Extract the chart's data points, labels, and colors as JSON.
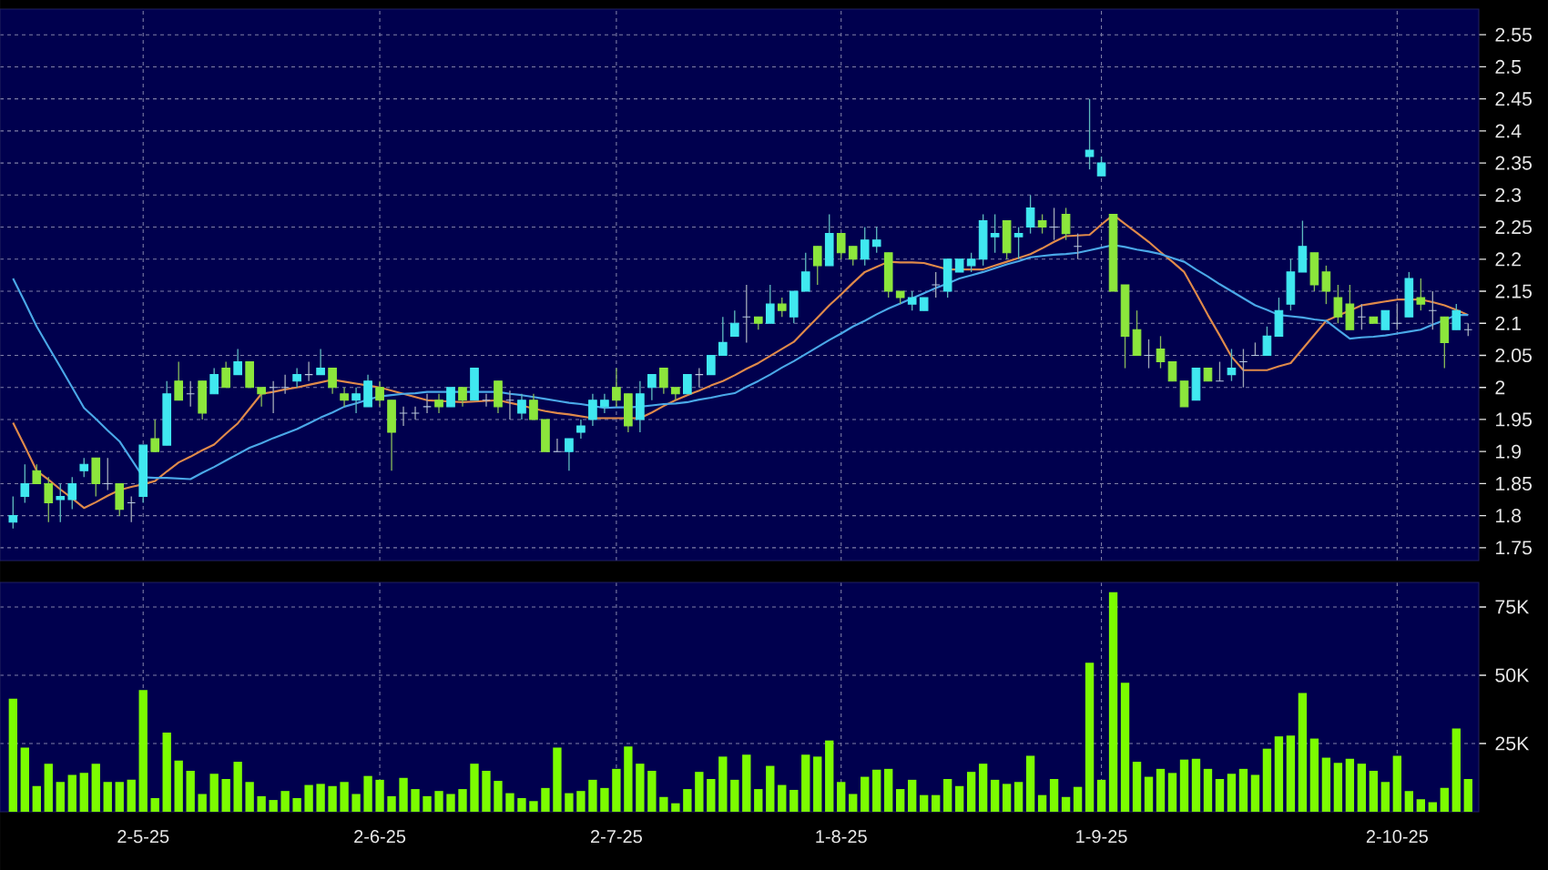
{
  "chart_data": [
    {
      "type": "candlestick",
      "tick_labels": "y",
      "grid": true,
      "ylim": [
        1.73,
        2.59
      ],
      "categories": [
        null,
        null,
        null,
        null,
        null,
        null,
        null,
        null,
        null,
        null,
        null,
        null,
        null,
        null,
        null,
        null,
        null,
        null,
        null,
        null,
        null,
        null,
        null,
        null,
        null,
        null,
        null,
        null,
        null,
        null,
        null,
        null,
        null,
        null,
        null,
        null,
        null,
        null,
        null,
        null,
        null,
        null,
        null,
        null,
        null,
        null,
        null,
        null,
        null,
        null,
        null,
        null,
        null,
        null,
        null,
        null,
        null,
        null,
        null,
        null,
        null,
        null,
        null,
        null,
        null,
        null,
        null,
        null,
        null,
        null,
        null,
        null,
        null,
        null,
        null,
        null,
        null,
        null,
        null,
        null,
        null,
        null,
        null,
        null,
        null,
        null,
        null,
        null,
        null,
        null,
        null,
        null,
        null,
        null,
        null,
        null,
        null,
        null,
        null,
        null,
        null,
        null,
        null,
        null,
        null,
        null,
        null,
        null,
        null,
        null,
        null,
        null,
        null,
        null,
        null,
        null,
        null,
        null,
        null,
        null,
        null,
        null,
        null,
        null
      ],
      "yticks": [
        1.75,
        1.8,
        1.85,
        1.9,
        1.95,
        2,
        2.05,
        2.1,
        2.15,
        2.2,
        2.25,
        2.3,
        2.35,
        2.4,
        2.45,
        2.5,
        2.55
      ],
      "ohlc": [
        [
          1.79,
          1.83,
          1.78,
          1.8
        ],
        [
          1.83,
          1.88,
          1.82,
          1.85
        ],
        [
          1.87,
          1.88,
          1.85,
          1.85
        ],
        [
          1.85,
          1.86,
          1.79,
          1.82
        ],
        [
          1.825,
          1.85,
          1.79,
          1.83
        ],
        [
          1.825,
          1.86,
          1.81,
          1.85
        ],
        [
          1.87,
          1.89,
          1.86,
          1.88
        ],
        [
          1.89,
          1.89,
          1.83,
          1.85
        ],
        [
          1.85,
          1.89,
          1.84,
          1.85
        ],
        [
          1.85,
          1.85,
          1.8,
          1.81
        ],
        [
          1.82,
          1.83,
          1.79,
          1.82
        ],
        [
          1.83,
          1.91,
          1.82,
          1.91
        ],
        [
          1.92,
          1.95,
          1.9,
          1.9
        ],
        [
          1.91,
          2.01,
          1.91,
          1.99
        ],
        [
          2.01,
          2.04,
          1.98,
          1.98
        ],
        [
          1.99,
          2.01,
          1.97,
          1.99
        ],
        [
          2.01,
          2.01,
          1.95,
          1.96
        ],
        [
          1.99,
          2.03,
          1.99,
          2.02
        ],
        [
          2.03,
          2.04,
          2.0,
          2.0
        ],
        [
          2.02,
          2.06,
          2.02,
          2.04
        ],
        [
          2.04,
          2.04,
          2.0,
          2.0
        ],
        [
          2.0,
          2.0,
          1.97,
          1.99
        ],
        [
          2.0,
          2.01,
          1.96,
          2.0
        ],
        [
          2.0,
          2.02,
          1.99,
          2.0
        ],
        [
          2.01,
          2.03,
          2.0,
          2.02
        ],
        [
          2.02,
          2.04,
          2.01,
          2.02
        ],
        [
          2.02,
          2.06,
          2.02,
          2.03
        ],
        [
          2.03,
          2.03,
          1.99,
          2.0
        ],
        [
          1.99,
          2.0,
          1.97,
          1.98
        ],
        [
          1.98,
          2.0,
          1.96,
          1.99
        ],
        [
          1.97,
          2.02,
          1.97,
          2.01
        ],
        [
          2.0,
          2.01,
          1.97,
          1.98
        ],
        [
          1.98,
          1.98,
          1.87,
          1.93
        ],
        [
          1.96,
          1.97,
          1.94,
          1.96
        ],
        [
          1.96,
          1.97,
          1.95,
          1.96
        ],
        [
          1.97,
          1.99,
          1.96,
          1.97
        ],
        [
          1.98,
          1.99,
          1.96,
          1.97
        ],
        [
          1.97,
          2.0,
          1.97,
          2.0
        ],
        [
          2.0,
          2.0,
          1.97,
          1.98
        ],
        [
          1.98,
          2.03,
          1.98,
          2.03
        ],
        [
          1.98,
          1.99,
          1.97,
          1.98
        ],
        [
          2.01,
          2.01,
          1.96,
          1.97
        ],
        [
          1.98,
          1.995,
          1.95,
          1.98
        ],
        [
          1.96,
          1.99,
          1.95,
          1.98
        ],
        [
          1.98,
          1.99,
          1.95,
          1.95
        ],
        [
          1.95,
          1.95,
          1.9,
          1.9
        ],
        [
          1.9,
          1.92,
          1.9,
          1.9
        ],
        [
          1.9,
          1.92,
          1.87,
          1.92
        ],
        [
          1.93,
          1.95,
          1.92,
          1.94
        ],
        [
          1.95,
          1.99,
          1.94,
          1.98
        ],
        [
          1.97,
          1.99,
          1.96,
          1.98
        ],
        [
          2.0,
          2.03,
          1.97,
          1.98
        ],
        [
          1.99,
          1.99,
          1.93,
          1.94
        ],
        [
          1.95,
          2.01,
          1.93,
          1.99
        ],
        [
          2.0,
          2.02,
          1.98,
          2.02
        ],
        [
          2.03,
          2.03,
          1.99,
          2.0
        ],
        [
          2.0,
          2.0,
          1.98,
          1.99
        ],
        [
          1.99,
          2.02,
          1.99,
          2.02
        ],
        [
          2.02,
          2.03,
          2.0,
          2.02
        ],
        [
          2.02,
          2.05,
          2.02,
          2.05
        ],
        [
          2.05,
          2.11,
          2.05,
          2.07
        ],
        [
          2.08,
          2.12,
          2.08,
          2.1
        ],
        [
          2.11,
          2.16,
          2.07,
          2.11
        ],
        [
          2.11,
          2.11,
          2.09,
          2.1
        ],
        [
          2.1,
          2.16,
          2.1,
          2.13
        ],
        [
          2.13,
          2.14,
          2.11,
          2.12
        ],
        [
          2.11,
          2.15,
          2.1,
          2.15
        ],
        [
          2.15,
          2.21,
          2.15,
          2.18
        ],
        [
          2.22,
          2.22,
          2.16,
          2.19
        ],
        [
          2.19,
          2.27,
          2.19,
          2.24
        ],
        [
          2.24,
          2.24,
          2.2,
          2.21
        ],
        [
          2.22,
          2.22,
          2.19,
          2.2
        ],
        [
          2.2,
          2.25,
          2.19,
          2.23
        ],
        [
          2.22,
          2.25,
          2.21,
          2.23
        ],
        [
          2.21,
          2.21,
          2.14,
          2.15
        ],
        [
          2.15,
          2.15,
          2.13,
          2.14
        ],
        [
          2.13,
          2.15,
          2.12,
          2.14
        ],
        [
          2.12,
          2.14,
          2.12,
          2.14
        ],
        [
          2.16,
          2.18,
          2.14,
          2.16
        ],
        [
          2.15,
          2.2,
          2.14,
          2.2
        ],
        [
          2.18,
          2.2,
          2.18,
          2.2
        ],
        [
          2.19,
          2.21,
          2.18,
          2.2
        ],
        [
          2.2,
          2.27,
          2.19,
          2.26
        ],
        [
          2.235,
          2.27,
          2.21,
          2.24
        ],
        [
          2.26,
          2.26,
          2.2,
          2.21
        ],
        [
          2.235,
          2.25,
          2.2,
          2.24
        ],
        [
          2.25,
          2.3,
          2.24,
          2.28
        ],
        [
          2.26,
          2.27,
          2.24,
          2.25
        ],
        [
          2.25,
          2.28,
          2.23,
          2.25
        ],
        [
          2.27,
          2.28,
          2.23,
          2.24
        ],
        [
          2.22,
          2.24,
          2.2,
          2.22
        ],
        [
          2.36,
          2.45,
          2.34,
          2.37
        ],
        [
          2.33,
          2.36,
          2.33,
          2.35
        ],
        [
          2.27,
          2.27,
          2.15,
          2.15
        ],
        [
          2.16,
          2.16,
          2.03,
          2.08
        ],
        [
          2.09,
          2.12,
          2.05,
          2.05
        ],
        [
          2.05,
          2.075,
          2.03,
          2.05
        ],
        [
          2.06,
          2.08,
          2.03,
          2.04
        ],
        [
          2.04,
          2.04,
          2.01,
          2.01
        ],
        [
          2.01,
          2.01,
          1.97,
          1.97
        ],
        [
          1.98,
          2.03,
          1.98,
          2.03
        ],
        [
          2.03,
          2.03,
          2.01,
          2.01
        ],
        [
          2.01,
          2.04,
          2.01,
          2.01
        ],
        [
          2.02,
          2.06,
          2.01,
          2.03
        ],
        [
          2.04,
          2.06,
          2.0,
          2.04
        ],
        [
          2.05,
          2.07,
          2.05,
          2.05
        ],
        [
          2.05,
          2.095,
          2.05,
          2.08
        ],
        [
          2.08,
          2.14,
          2.08,
          2.12
        ],
        [
          2.13,
          2.2,
          2.12,
          2.18
        ],
        [
          2.18,
          2.26,
          2.18,
          2.22
        ],
        [
          2.21,
          2.21,
          2.15,
          2.16
        ],
        [
          2.18,
          2.19,
          2.13,
          2.15
        ],
        [
          2.14,
          2.16,
          2.1,
          2.11
        ],
        [
          2.13,
          2.16,
          2.09,
          2.09
        ],
        [
          2.11,
          2.13,
          2.09,
          2.11
        ],
        [
          2.11,
          2.11,
          2.1,
          2.1
        ],
        [
          2.09,
          2.12,
          2.09,
          2.12
        ],
        [
          2.1,
          2.13,
          2.09,
          2.1
        ],
        [
          2.11,
          2.18,
          2.11,
          2.17
        ],
        [
          2.14,
          2.17,
          2.12,
          2.13
        ],
        [
          2.12,
          2.15,
          2.09,
          2.12
        ],
        [
          2.11,
          2.11,
          2.03,
          2.07
        ],
        [
          2.09,
          2.13,
          2.09,
          2.12
        ],
        [
          2.09,
          2.1,
          2.08,
          2.09
        ]
      ],
      "colors": [
        "#40e8f0",
        "#40e8f0",
        "#8ce63c",
        "#8ce63c",
        "#40e8f0",
        "#40e8f0",
        "#40e8f0",
        "#8ce63c",
        "#b8c8e0",
        "#8ce63c",
        "#b8c8e0",
        "#40e8f0",
        "#8ce63c",
        "#40e8f0",
        "#8ce63c",
        "#b8c8e0",
        "#8ce63c",
        "#40e8f0",
        "#8ce63c",
        "#40e8f0",
        "#8ce63c",
        "#8ce63c",
        "#b8c8e0",
        "#b8c8e0",
        "#40e8f0",
        "#b8c8e0",
        "#40e8f0",
        "#8ce63c",
        "#8ce63c",
        "#40e8f0",
        "#40e8f0",
        "#8ce63c",
        "#8ce63c",
        "#b8c8e0",
        "#b8c8e0",
        "#b8c8e0",
        "#8ce63c",
        "#40e8f0",
        "#8ce63c",
        "#40e8f0",
        "#b8c8e0",
        "#8ce63c",
        "#b8c8e0",
        "#40e8f0",
        "#8ce63c",
        "#8ce63c",
        "#b8c8e0",
        "#40e8f0",
        "#40e8f0",
        "#40e8f0",
        "#40e8f0",
        "#8ce63c",
        "#8ce63c",
        "#40e8f0",
        "#40e8f0",
        "#8ce63c",
        "#8ce63c",
        "#40e8f0",
        "#b8c8e0",
        "#40e8f0",
        "#40e8f0",
        "#40e8f0",
        "#b8c8e0",
        "#8ce63c",
        "#40e8f0",
        "#8ce63c",
        "#40e8f0",
        "#40e8f0",
        "#8ce63c",
        "#40e8f0",
        "#8ce63c",
        "#8ce63c",
        "#40e8f0",
        "#40e8f0",
        "#8ce63c",
        "#8ce63c",
        "#40e8f0",
        "#40e8f0",
        "#b8c8e0",
        "#40e8f0",
        "#40e8f0",
        "#40e8f0",
        "#40e8f0",
        "#40e8f0",
        "#8ce63c",
        "#40e8f0",
        "#40e8f0",
        "#8ce63c",
        "#b8c8e0",
        "#8ce63c",
        "#b8c8e0",
        "#40e8f0",
        "#40e8f0",
        "#8ce63c",
        "#8ce63c",
        "#8ce63c",
        "#b8c8e0",
        "#8ce63c",
        "#8ce63c",
        "#8ce63c",
        "#40e8f0",
        "#8ce63c",
        "#b8c8e0",
        "#40e8f0",
        "#b8c8e0",
        "#b8c8e0",
        "#40e8f0",
        "#40e8f0",
        "#40e8f0",
        "#40e8f0",
        "#8ce63c",
        "#8ce63c",
        "#8ce63c",
        "#8ce63c",
        "#b8c8e0",
        "#8ce63c",
        "#40e8f0",
        "#b8c8e0",
        "#40e8f0",
        "#8ce63c",
        "#b8c8e0",
        "#8ce63c",
        "#40e8f0",
        "#b8c8e0"
      ],
      "series": [
        {
          "type": "line",
          "color": "#e08a4a",
          "values": [
            1.945,
            1.908,
            1.87,
            1.856,
            1.841,
            1.827,
            1.812,
            1.821,
            1.831,
            1.84,
            1.845,
            1.849,
            1.854,
            1.869,
            1.883,
            1.892,
            1.902,
            1.911,
            1.928,
            1.944,
            1.967,
            1.99,
            1.993,
            1.997,
            2.0,
            2.004,
            2.008,
            2.012,
            2.009,
            2.006,
            2.003,
            2.0,
            1.995,
            1.99,
            1.985,
            1.98,
            1.979,
            1.978,
            1.977,
            1.978,
            1.979,
            1.98,
            1.976,
            1.972,
            1.967,
            1.963,
            1.96,
            1.958,
            1.955,
            1.952,
            1.952,
            1.952,
            1.952,
            1.952,
            1.961,
            1.971,
            1.98,
            1.988,
            1.995,
            2.003,
            2.01,
            2.019,
            2.029,
            2.038,
            2.049,
            2.06,
            2.071,
            2.09,
            2.109,
            2.128,
            2.145,
            2.163,
            2.18,
            2.188,
            2.196,
            2.195,
            2.195,
            2.194,
            2.189,
            2.184,
            2.184,
            2.184,
            2.184,
            2.19,
            2.196,
            2.202,
            2.208,
            2.217,
            2.227,
            2.236,
            2.237,
            2.238,
            2.254,
            2.269,
            2.255,
            2.241,
            2.227,
            2.211,
            2.196,
            2.18,
            2.147,
            2.113,
            2.081,
            2.048,
            2.027,
            2.027,
            2.027,
            2.033,
            2.038,
            2.06,
            2.082,
            2.104,
            2.112,
            2.12,
            2.128,
            2.131,
            2.134,
            2.137,
            2.137,
            2.137,
            2.133,
            2.128,
            2.121,
            2.113
          ]
        },
        {
          "type": "line",
          "color": "#4aa8e8",
          "values": [
            2.17,
            2.133,
            2.095,
            2.063,
            2.032,
            2.0,
            1.968,
            1.951,
            1.933,
            1.916,
            1.888,
            1.86,
            1.859,
            1.859,
            1.858,
            1.857,
            1.867,
            1.876,
            1.886,
            1.896,
            1.906,
            1.913,
            1.921,
            1.928,
            1.935,
            1.944,
            1.953,
            1.961,
            1.97,
            1.975,
            1.981,
            1.986,
            1.988,
            1.99,
            1.991,
            1.993,
            1.993,
            1.993,
            1.993,
            1.993,
            1.993,
            1.993,
            1.99,
            1.988,
            1.985,
            1.982,
            1.979,
            1.976,
            1.974,
            1.971,
            1.968,
            1.969,
            1.969,
            1.97,
            1.972,
            1.974,
            1.975,
            1.977,
            1.981,
            1.984,
            1.988,
            1.991,
            2.001,
            2.01,
            2.02,
            2.031,
            2.041,
            2.052,
            2.063,
            2.074,
            2.084,
            2.095,
            2.104,
            2.114,
            2.123,
            2.131,
            2.139,
            2.147,
            2.155,
            2.162,
            2.17,
            2.175,
            2.18,
            2.186,
            2.192,
            2.197,
            2.203,
            2.205,
            2.207,
            2.208,
            2.21,
            2.214,
            2.218,
            2.222,
            2.219,
            2.215,
            2.212,
            2.208,
            2.202,
            2.196,
            2.184,
            2.173,
            2.161,
            2.15,
            2.139,
            2.128,
            2.121,
            2.113,
            2.111,
            2.109,
            2.106,
            2.104,
            2.09,
            2.076,
            2.078,
            2.079,
            2.081,
            2.084,
            2.087,
            2.09,
            2.098,
            2.105,
            2.113,
            2.113
          ]
        }
      ]
    },
    {
      "type": "bar",
      "grid": true,
      "color": "#7cfc00",
      "ylim": [
        0,
        84000
      ],
      "categories": [
        null,
        null,
        null,
        null,
        null,
        null,
        null,
        null,
        null,
        null,
        null,
        "2-5-25",
        null,
        null,
        null,
        null,
        null,
        null,
        null,
        null,
        null,
        null,
        null,
        null,
        null,
        null,
        null,
        null,
        null,
        null,
        null,
        "2-6-25",
        null,
        null,
        null,
        null,
        null,
        null,
        null,
        null,
        null,
        null,
        null,
        null,
        null,
        null,
        null,
        null,
        null,
        null,
        null,
        "2-7-25",
        null,
        null,
        null,
        null,
        null,
        null,
        null,
        null,
        null,
        null,
        null,
        null,
        null,
        null,
        null,
        null,
        null,
        null,
        "1-8-25",
        null,
        null,
        null,
        null,
        null,
        null,
        null,
        null,
        null,
        null,
        null,
        null,
        null,
        null,
        null,
        null,
        null,
        null,
        null,
        null,
        null,
        "1-9-25",
        null,
        null,
        null,
        null,
        null,
        null,
        null,
        null,
        null,
        null,
        null,
        null,
        null,
        null,
        null,
        null,
        null,
        null,
        null,
        null,
        null,
        null,
        null,
        null,
        "2-10-25",
        null,
        null,
        null,
        null,
        null,
        null
      ],
      "yticks": [
        {
          "value": 25000,
          "label": "25K"
        },
        {
          "value": 50000,
          "label": "50K"
        },
        {
          "value": 75000,
          "label": "75K"
        }
      ],
      "values": [
        41400,
        23500,
        9400,
        17600,
        10900,
        13500,
        14200,
        17600,
        10900,
        10900,
        11700,
        44600,
        5000,
        29000,
        18700,
        15000,
        6500,
        13900,
        12000,
        18300,
        10900,
        5700,
        4300,
        7600,
        5000,
        9800,
        10200,
        9400,
        10900,
        6500,
        13100,
        11700,
        5700,
        12400,
        8300,
        5700,
        7600,
        6500,
        8300,
        17600,
        15000,
        11300,
        6800,
        5000,
        3900,
        8700,
        23500,
        6800,
        7600,
        11700,
        8700,
        15700,
        23900,
        17600,
        15000,
        5400,
        3100,
        8300,
        14600,
        12000,
        20200,
        11700,
        20900,
        8300,
        16800,
        9800,
        8000,
        20900,
        20200,
        26100,
        10900,
        6500,
        12800,
        15400,
        15700,
        8300,
        11700,
        6100,
        6100,
        12000,
        9400,
        14600,
        17600,
        11700,
        10200,
        10900,
        20500,
        6100,
        12000,
        5400,
        9100,
        54600,
        11700,
        80500,
        47200,
        18300,
        12800,
        15700,
        14200,
        19100,
        19400,
        15700,
        12000,
        13900,
        15700,
        13500,
        23100,
        27600,
        27900,
        43500,
        26800,
        19800,
        17900,
        19400,
        17600,
        15000,
        10900,
        20500,
        7600,
        4600,
        3500,
        8700,
        30500,
        12000
      ]
    }
  ]
}
